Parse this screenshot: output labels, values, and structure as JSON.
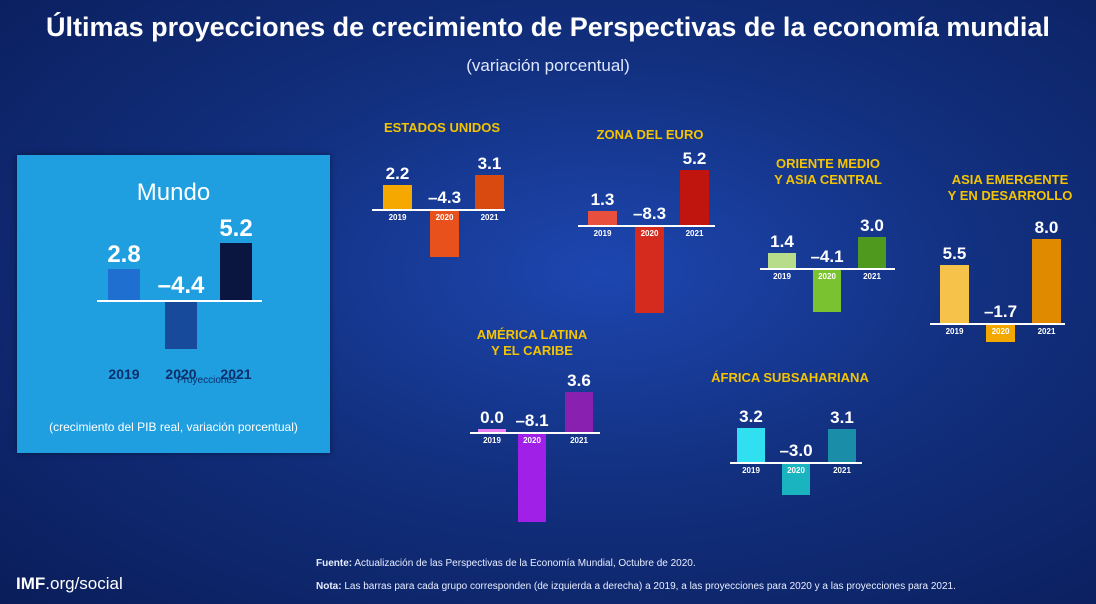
{
  "title": "Últimas proyecciones de crecimiento de Perspectivas de la economía mundial",
  "subtitle": "(variación porcentual)",
  "chart_data": {
    "type": "bar",
    "categories": [
      "2019",
      "2020",
      "2021"
    ],
    "groups": [
      {
        "name": "Mundo",
        "values": [
          2.8,
          -4.4,
          5.2
        ],
        "colors": [
          "#1f6fd0",
          "#174a9a",
          "#0a1540"
        ]
      },
      {
        "name": "ESTADOS UNIDOS",
        "values": [
          2.2,
          -4.3,
          3.1
        ],
        "colors": [
          "#f5a800",
          "#e8501c",
          "#d94a10"
        ]
      },
      {
        "name": "ZONA DEL EURO",
        "values": [
          1.3,
          -8.3,
          5.2
        ],
        "colors": [
          "#e8503d",
          "#d52a1e",
          "#c0150f"
        ]
      },
      {
        "name": "ORIENTE MEDIO Y ASIA CENTRAL",
        "values": [
          1.4,
          -4.1,
          3.0
        ],
        "colors": [
          "#b7dd8a",
          "#7ac230",
          "#4f9a1e"
        ]
      },
      {
        "name": "ASIA EMERGENTE Y EN DESARROLLO",
        "values": [
          5.5,
          -1.7,
          8.0
        ],
        "colors": [
          "#f7c24a",
          "#f2a800",
          "#e08a00"
        ]
      },
      {
        "name": "AMÉRICA LATINA Y EL CARIBE",
        "values": [
          0.0,
          -8.1,
          3.6
        ],
        "colors": [
          "#e87ef0",
          "#a020e8",
          "#8a20b0"
        ]
      },
      {
        "name": "ÁFRICA SUBSAHARIANA",
        "values": [
          3.2,
          -3.0,
          3.1
        ],
        "colors": [
          "#30e0f0",
          "#19b4c0",
          "#1a8ea8"
        ]
      }
    ],
    "projections_label": "Proyecciones",
    "note": "(crecimiento del PIB real, variación porcentual)"
  },
  "region_titles": {
    "us": "ESTADOS UNIDOS",
    "euro": "ZONA DEL EURO",
    "me1": "ORIENTE MEDIO",
    "me2": "Y ASIA CENTRAL",
    "asia1": "ASIA EMERGENTE",
    "asia2": "Y EN DESARROLLO",
    "la1": "AMÉRICA LATINA",
    "la2": "Y EL CARIBE",
    "af": "ÁFRICA SUBSAHARIANA"
  },
  "footer": {
    "source_label": "Fuente:",
    "source": "Actualización de las Perspectivas de la Economía Mundial, Octubre de 2020.",
    "note_label": "Nota:",
    "note": "Las barras para cada grupo corresponden (de izquierda a derecha) a 2019, a las proyecciones para 2020 y a las proyecciones para 2021.",
    "brand": "IMF",
    "brand_rest": ".org/social"
  }
}
